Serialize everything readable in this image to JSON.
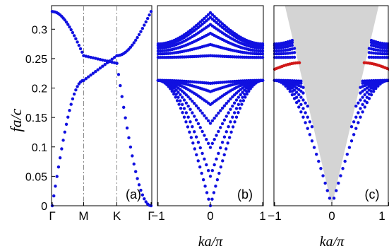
{
  "figure": {
    "ylabel": "fa/c",
    "yticks": [
      "0",
      "0.05",
      "0.1",
      "0.15",
      "0.2",
      "0.25",
      "0.3"
    ],
    "colors": {
      "band": "#1010e0",
      "surface": "#d01818",
      "cone": "#d4d4d4",
      "axes": "#000000",
      "guide": "#8a8a8a"
    }
  },
  "chart_data": [
    {
      "type": "scatter",
      "panel_label": "(a)",
      "xlabel": "",
      "xtick_labels": [
        "Γ",
        "M",
        "K",
        "Γ"
      ],
      "ylabel": "fa/c",
      "ylim": [
        0,
        0.34
      ],
      "vertical_guides_at": [
        "M",
        "K"
      ],
      "series": [
        {
          "points": [
            [
              "Γ",
              0.0
            ],
            [
              "M",
              0.213
            ],
            [
              "K",
              0.255
            ],
            [
              "Γ",
              0.33
            ]
          ]
        },
        {
          "points": [
            [
              "Γ",
              0.33
            ],
            [
              "M",
              0.255
            ],
            [
              "K",
              0.242
            ],
            [
              "Γ",
              0.0
            ]
          ]
        }
      ]
    },
    {
      "type": "scatter",
      "panel_label": "(b)",
      "xlabel": "ka/π",
      "xlim": [
        -1,
        1
      ],
      "xticks": [
        "−1",
        "0",
        "1"
      ],
      "ylim": [
        0,
        0.34
      ],
      "lower_band_minima": [
        0.0,
        0.05,
        0.099,
        0.14,
        0.172,
        0.194,
        0.208
      ],
      "lower_band_edge": 0.213,
      "upper_bands_center": [
        0.255,
        0.274,
        0.293,
        0.308,
        0.32,
        0.328
      ],
      "upper_bands_edge": [
        0.252,
        0.258,
        0.263,
        0.268,
        0.272,
        0.275
      ]
    },
    {
      "type": "scatter",
      "panel_label": "(c)",
      "xlabel": "ka/π",
      "xlim": [
        -1,
        1
      ],
      "xticks": [
        "−1",
        "0",
        "1"
      ],
      "ylim": [
        0,
        0.34
      ],
      "light_cone": "shaded",
      "surface_band_color": "red",
      "surface_band": {
        "edge": 0.232,
        "inner": 0.243,
        "k_inner": 0.55
      }
    }
  ]
}
